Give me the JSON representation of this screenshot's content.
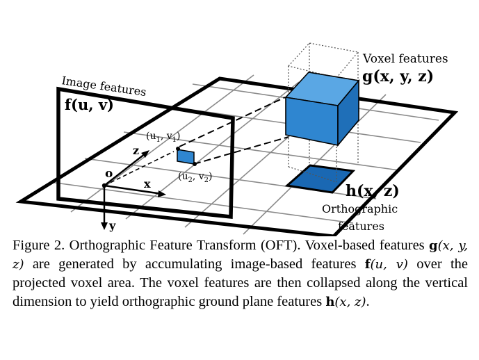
{
  "figure": {
    "labels": {
      "voxel_title": "Voxel features",
      "voxel_func": "g(x, y, z)",
      "image_title": "Image features",
      "image_func": "f(u, v)",
      "uv1": "(u",
      "uv1_sub": "1",
      "uv1_mid": ", v",
      "uv1_sub2": "1",
      "uv1_end": ")",
      "uv2": "(u",
      "uv2_sub": "2",
      "uv2_mid": ", v",
      "uv2_sub2": "2",
      "uv2_end": ")",
      "axis_z": "z",
      "axis_x": "x",
      "axis_y": "y",
      "origin": "o",
      "ortho_func": "h(x, z)",
      "ortho_title_1": "Orthographic",
      "ortho_title_2": "features"
    },
    "colors": {
      "voxel_blue": "#3a8fd6",
      "voxel_blue_dark": "#1f6fb8",
      "ortho_cell": "#1a68b3",
      "grid": "#8a8a8a"
    }
  },
  "caption": {
    "prefix": "Figure 2. Orthographic Feature Transform (OFT). Voxel-based features ",
    "g_bold": "g",
    "g_args": "(x, y, z)",
    "mid1": " are generated by accumulating image-based features ",
    "f_bold": "f",
    "f_args": "(u, v)",
    "mid2": " over the projected voxel area.  The voxel features are then collapsed along the vertical dimension to yield orthographic ground plane features ",
    "h_bold": "h",
    "h_args": "(x, z)",
    "end": "."
  }
}
